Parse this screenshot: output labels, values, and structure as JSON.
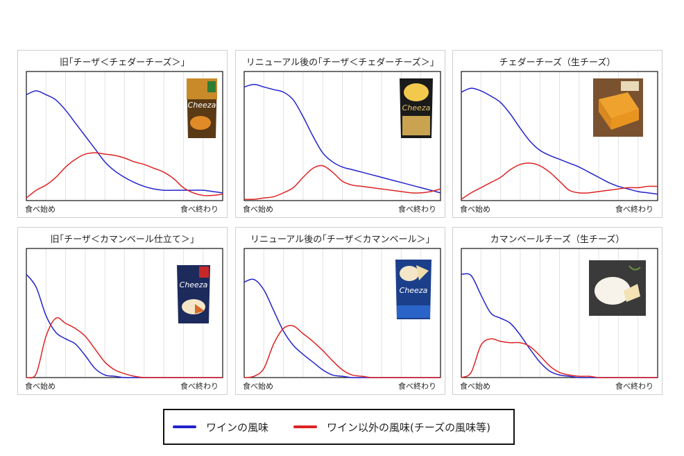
{
  "colors": {
    "wine": "#2222cc",
    "other": "#dd2222",
    "grid": "#e2e2e2",
    "axis": "#111111"
  },
  "legend": {
    "wine_label": "ワインの風味",
    "other_label": "ワイン以外の風味(チーズの風味等)"
  },
  "chart_data": [
    {
      "type": "line",
      "title": "旧｢チーザ＜チェダーチーズ＞｣",
      "xlabel_start": "食べ始め",
      "xlabel_end": "食べ終わり",
      "image": "cheeza-cheddar-old-package-icon",
      "x": [
        0,
        0.05,
        0.1,
        0.15,
        0.2,
        0.25,
        0.3,
        0.35,
        0.4,
        0.45,
        0.5,
        0.55,
        0.6,
        0.65,
        0.7,
        0.75,
        0.8,
        0.85,
        0.9,
        0.95,
        1.0
      ],
      "ylim": [
        0,
        1
      ],
      "series": [
        {
          "name": "wine",
          "values": [
            0.82,
            0.85,
            0.82,
            0.78,
            0.7,
            0.6,
            0.5,
            0.4,
            0.3,
            0.23,
            0.18,
            0.14,
            0.11,
            0.09,
            0.08,
            0.08,
            0.08,
            0.08,
            0.08,
            0.07,
            0.06
          ]
        },
        {
          "name": "other",
          "values": [
            0.02,
            0.08,
            0.12,
            0.18,
            0.26,
            0.32,
            0.36,
            0.37,
            0.36,
            0.35,
            0.33,
            0.3,
            0.28,
            0.25,
            0.22,
            0.17,
            0.1,
            0.06,
            0.04,
            0.04,
            0.05
          ]
        }
      ]
    },
    {
      "type": "line",
      "title": "リニューアル後の｢チーザ＜チェダーチーズ＞｣",
      "xlabel_start": "食べ始め",
      "xlabel_end": "食べ終わり",
      "image": "cheeza-cheddar-renewal-package-icon",
      "x": [
        0,
        0.05,
        0.1,
        0.15,
        0.2,
        0.25,
        0.3,
        0.35,
        0.4,
        0.45,
        0.5,
        0.55,
        0.6,
        0.65,
        0.7,
        0.75,
        0.8,
        0.85,
        0.9,
        0.95,
        1.0
      ],
      "ylim": [
        0,
        1
      ],
      "series": [
        {
          "name": "wine",
          "values": [
            0.88,
            0.9,
            0.88,
            0.86,
            0.84,
            0.78,
            0.65,
            0.5,
            0.37,
            0.3,
            0.26,
            0.24,
            0.22,
            0.2,
            0.18,
            0.16,
            0.14,
            0.12,
            0.1,
            0.08,
            0.06
          ]
        },
        {
          "name": "other",
          "values": [
            0.01,
            0.01,
            0.02,
            0.03,
            0.06,
            0.1,
            0.18,
            0.25,
            0.27,
            0.22,
            0.15,
            0.12,
            0.11,
            0.1,
            0.09,
            0.08,
            0.07,
            0.06,
            0.06,
            0.07,
            0.09
          ]
        }
      ]
    },
    {
      "type": "line",
      "title": "チェダーチーズ（生チーズ）",
      "xlabel_start": "食べ始め",
      "xlabel_end": "食べ終わり",
      "image": "cheddar-cheese-photo-icon",
      "x": [
        0,
        0.05,
        0.1,
        0.15,
        0.2,
        0.25,
        0.3,
        0.35,
        0.4,
        0.45,
        0.5,
        0.55,
        0.6,
        0.65,
        0.7,
        0.75,
        0.8,
        0.85,
        0.9,
        0.95,
        1.0
      ],
      "ylim": [
        0,
        1
      ],
      "series": [
        {
          "name": "wine",
          "values": [
            0.84,
            0.87,
            0.85,
            0.81,
            0.76,
            0.67,
            0.56,
            0.46,
            0.39,
            0.35,
            0.32,
            0.29,
            0.26,
            0.22,
            0.18,
            0.14,
            0.11,
            0.09,
            0.07,
            0.06,
            0.05
          ]
        },
        {
          "name": "other",
          "values": [
            0.01,
            0.06,
            0.1,
            0.14,
            0.18,
            0.24,
            0.28,
            0.29,
            0.27,
            0.22,
            0.15,
            0.08,
            0.06,
            0.06,
            0.07,
            0.08,
            0.09,
            0.1,
            0.1,
            0.11,
            0.11
          ]
        }
      ]
    },
    {
      "type": "line",
      "title": "旧｢チーザ＜カマンベール仕立て＞｣",
      "xlabel_start": "食べ始め",
      "xlabel_end": "食べ終わり",
      "image": "cheeza-camembert-old-package-icon",
      "x": [
        0,
        0.05,
        0.1,
        0.15,
        0.2,
        0.25,
        0.3,
        0.35,
        0.4,
        0.45,
        0.5,
        0.55,
        0.6,
        0.65,
        0.7,
        0.75,
        0.8,
        0.85,
        0.9,
        0.95,
        1.0
      ],
      "ylim": [
        0,
        1
      ],
      "series": [
        {
          "name": "wine",
          "values": [
            0.8,
            0.7,
            0.48,
            0.35,
            0.3,
            0.26,
            0.17,
            0.07,
            0.02,
            0.01,
            0.0,
            0.0,
            0.0,
            0.0,
            0.0,
            0.0,
            0.0,
            0.0,
            0.0,
            0.0,
            0.0
          ]
        },
        {
          "name": "other",
          "values": [
            0.0,
            0.03,
            0.32,
            0.46,
            0.42,
            0.38,
            0.32,
            0.22,
            0.12,
            0.06,
            0.03,
            0.01,
            0.0,
            0.0,
            0.0,
            0.0,
            0.0,
            0.0,
            0.0,
            0.0,
            0.0
          ]
        }
      ]
    },
    {
      "type": "line",
      "title": "リニューアル後の｢チーザ＜カマンベール＞｣",
      "xlabel_start": "食べ始め",
      "xlabel_end": "食べ終わり",
      "image": "cheeza-camembert-renewal-package-icon",
      "x": [
        0,
        0.05,
        0.1,
        0.15,
        0.2,
        0.25,
        0.3,
        0.35,
        0.4,
        0.45,
        0.5,
        0.55,
        0.6,
        0.65,
        0.7,
        0.75,
        0.8,
        0.85,
        0.9,
        0.95,
        1.0
      ],
      "ylim": [
        0,
        1
      ],
      "series": [
        {
          "name": "wine",
          "values": [
            0.74,
            0.76,
            0.68,
            0.52,
            0.36,
            0.25,
            0.18,
            0.12,
            0.06,
            0.02,
            0.01,
            0.0,
            0.0,
            0.0,
            0.0,
            0.0,
            0.0,
            0.0,
            0.0,
            0.0,
            0.0
          ]
        },
        {
          "name": "other",
          "values": [
            0.0,
            0.01,
            0.07,
            0.26,
            0.38,
            0.4,
            0.34,
            0.28,
            0.21,
            0.13,
            0.06,
            0.02,
            0.01,
            0.0,
            0.0,
            0.0,
            0.0,
            0.0,
            0.0,
            0.0,
            0.0
          ]
        }
      ]
    },
    {
      "type": "line",
      "title": "カマンベールチーズ（生チーズ）",
      "xlabel_start": "食べ始め",
      "xlabel_end": "食べ終わり",
      "image": "camembert-cheese-photo-icon",
      "x": [
        0,
        0.05,
        0.1,
        0.15,
        0.2,
        0.25,
        0.3,
        0.35,
        0.4,
        0.45,
        0.5,
        0.55,
        0.6,
        0.65,
        0.7,
        0.75,
        0.8,
        0.85,
        0.9,
        0.95,
        1.0
      ],
      "ylim": [
        0,
        1
      ],
      "series": [
        {
          "name": "wine",
          "values": [
            0.8,
            0.79,
            0.64,
            0.5,
            0.46,
            0.42,
            0.33,
            0.22,
            0.12,
            0.05,
            0.02,
            0.01,
            0.0,
            0.0,
            0.0,
            0.0,
            0.0,
            0.0,
            0.0,
            0.0,
            0.0
          ]
        },
        {
          "name": "other",
          "values": [
            0.0,
            0.04,
            0.25,
            0.3,
            0.28,
            0.27,
            0.27,
            0.24,
            0.17,
            0.09,
            0.04,
            0.02,
            0.01,
            0.01,
            0.0,
            0.0,
            0.0,
            0.0,
            0.0,
            0.0,
            0.0
          ]
        }
      ]
    }
  ]
}
